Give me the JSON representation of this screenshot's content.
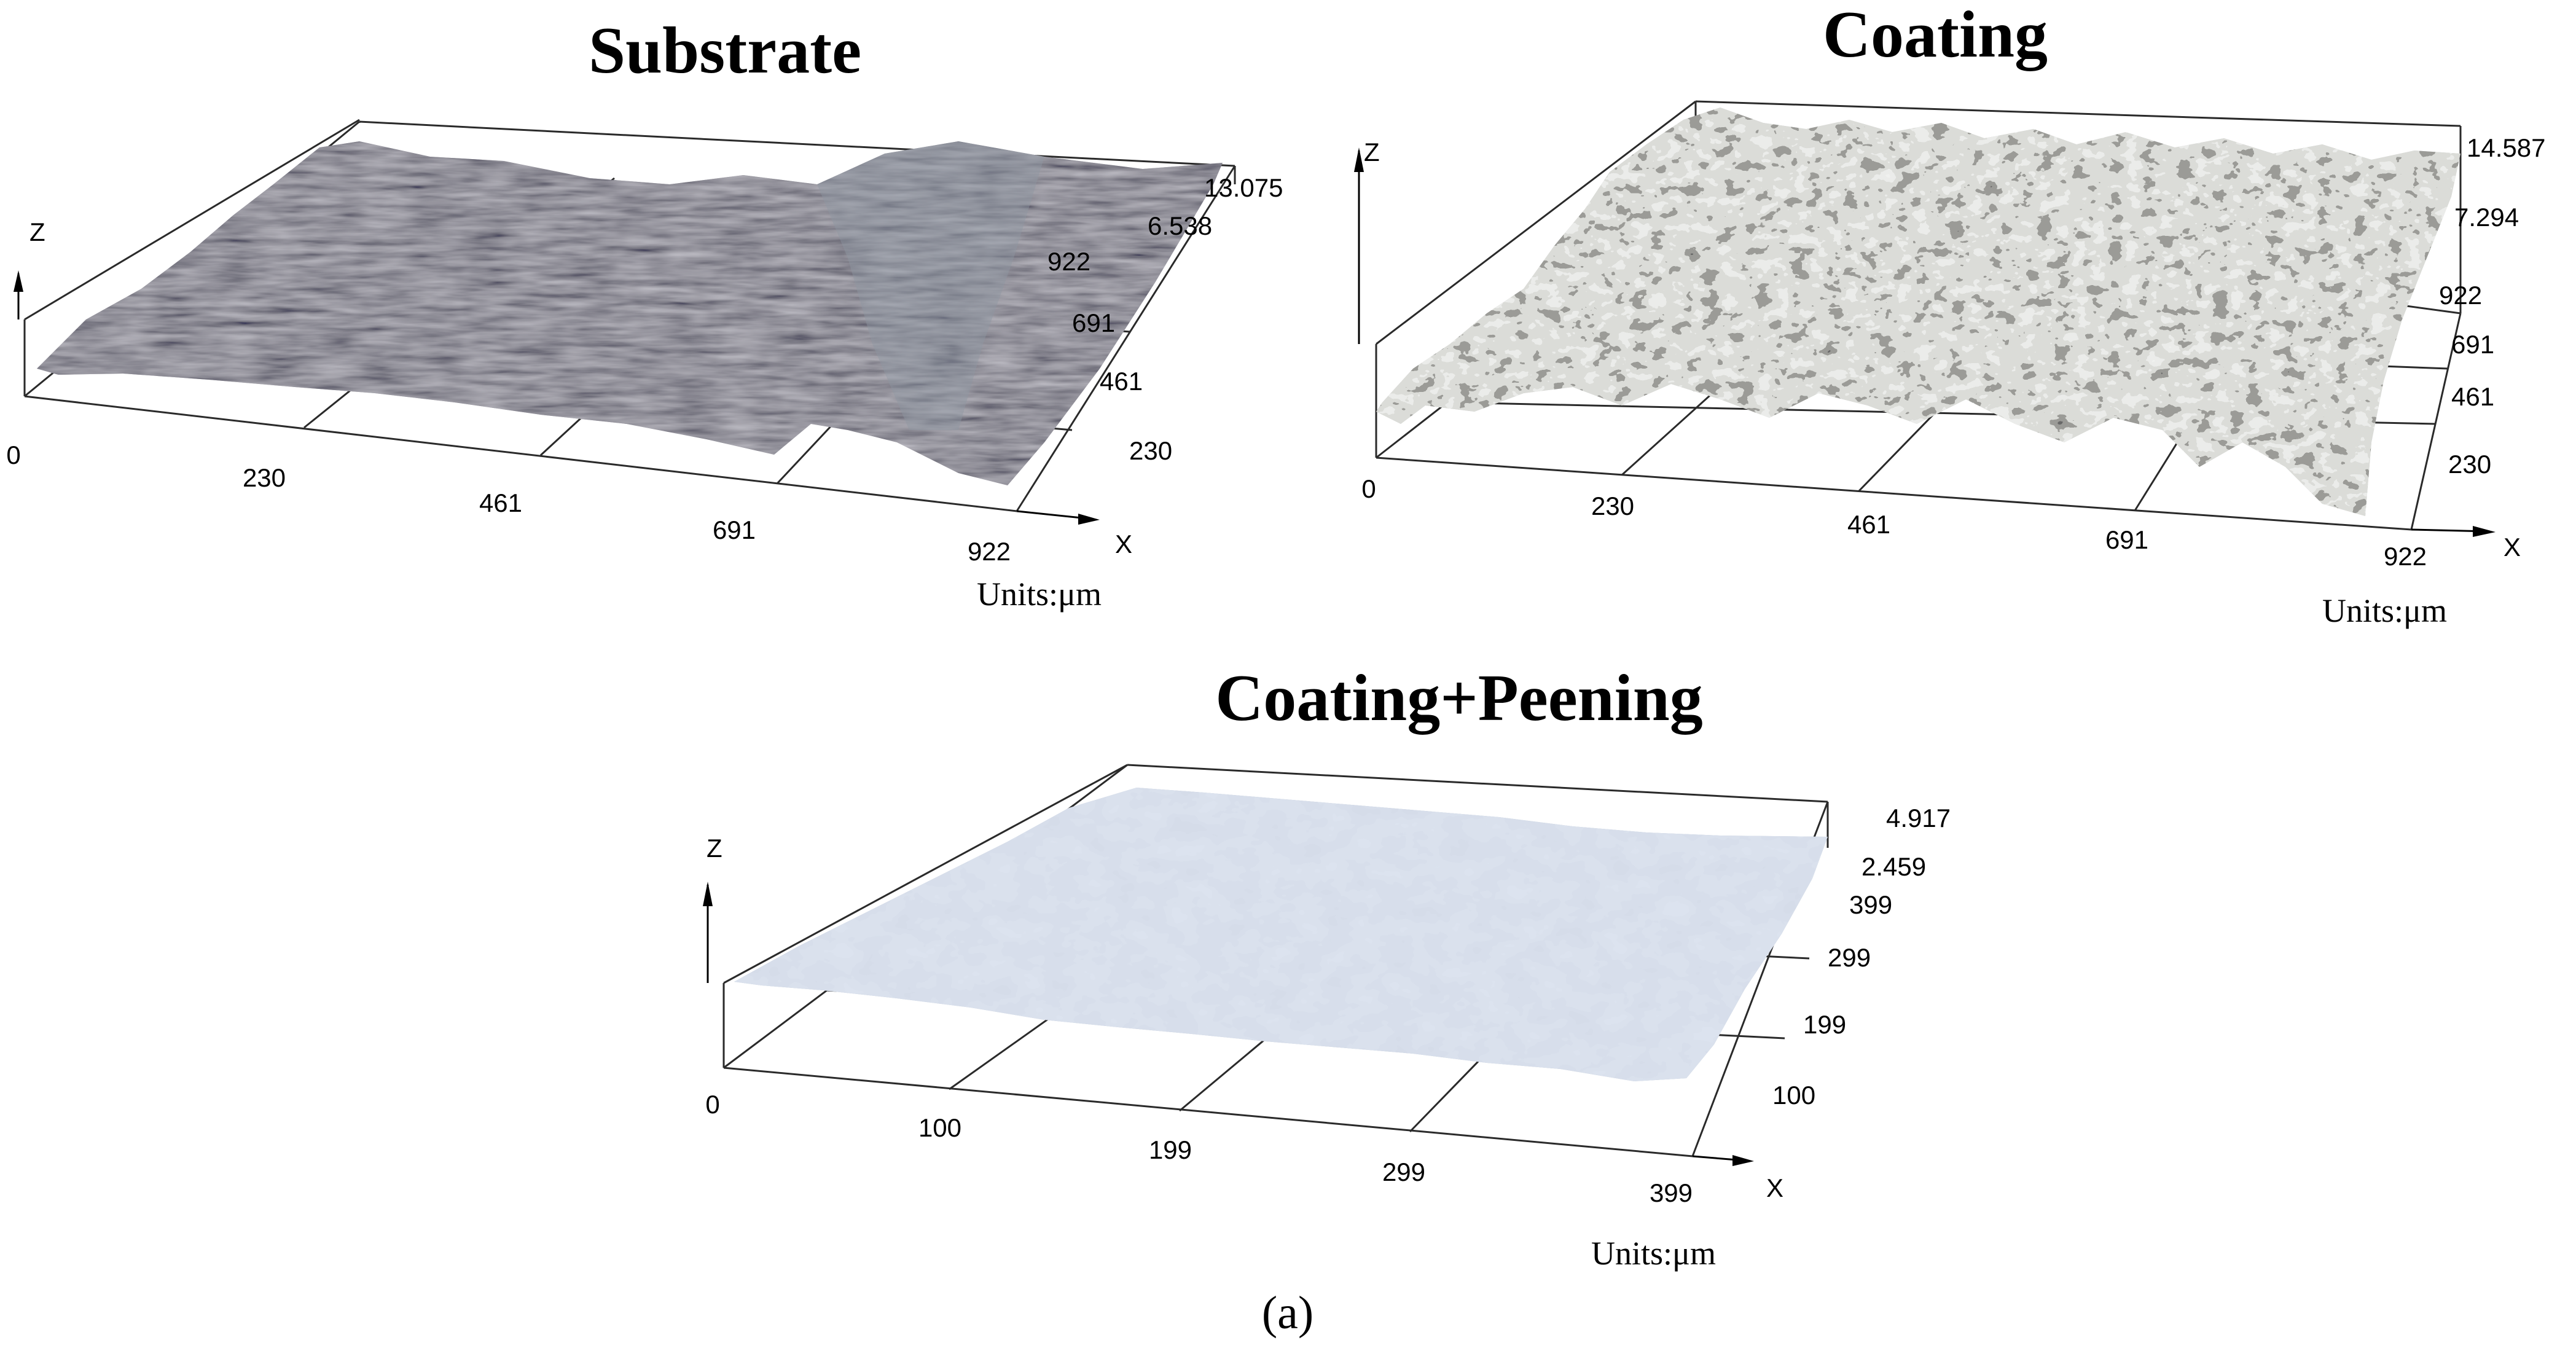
{
  "figure_label": "(a)",
  "colors": {
    "substrate": "#6f6c76",
    "coating": "#bfc3c1",
    "peening": "#a9b6c8",
    "axis": "#2a2a2a"
  },
  "panels": {
    "substrate": {
      "title": "Substrate",
      "z_axis": "Z",
      "x_axis": "X",
      "units": "Units:μm",
      "x_origin": "0",
      "x_ticks": [
        "230",
        "461",
        "691",
        "922"
      ],
      "y_ticks": [
        "922",
        "691",
        "461",
        "230"
      ],
      "z_ticks": [
        "13.075",
        "6.538"
      ]
    },
    "coating": {
      "title": "Coating",
      "z_axis": "Z",
      "x_axis": "X",
      "units": "Units:μm",
      "x_origin": "0",
      "x_ticks": [
        "230",
        "461",
        "691",
        "922"
      ],
      "y_ticks": [
        "922",
        "691",
        "461",
        "230"
      ],
      "z_ticks": [
        "14.587",
        "7.294"
      ]
    },
    "peening": {
      "title": "Coating+Peening",
      "z_axis": "Z",
      "x_axis": "X",
      "units": "Units:μm",
      "x_origin": "0",
      "x_ticks": [
        "100",
        "199",
        "299",
        "399"
      ],
      "y_ticks": [
        "399",
        "299",
        "199",
        "100"
      ],
      "z_ticks": [
        "4.917",
        "2.459"
      ]
    }
  }
}
